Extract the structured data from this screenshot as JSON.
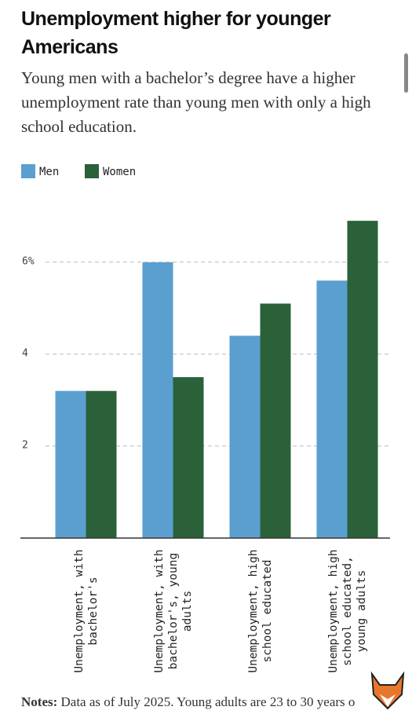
{
  "header": {
    "title": "Unemployment higher for younger Americans",
    "subtitle": "Young men with a bachelor’s degree have a higher unemployment rate than young men with only a high school education."
  },
  "chart_data": {
    "type": "bar",
    "categories": [
      "Unemployment, with bachelor's",
      "Unemployment, with bachelor's, young adults",
      "Unemployment, high school educated",
      "Unemployment, high school educated, young adults"
    ],
    "series": [
      {
        "name": "Men",
        "color": "#5b9fd1",
        "values": [
          3.2,
          6.0,
          4.4,
          5.6
        ]
      },
      {
        "name": "Women",
        "color": "#2a6139",
        "values": [
          3.2,
          3.5,
          5.1,
          6.9
        ]
      }
    ],
    "ylim": [
      0,
      7.5
    ],
    "yticks": [
      2,
      4,
      {
        "value": 6,
        "label": "6%"
      }
    ],
    "grid": true
  },
  "notes": {
    "label": "Notes:",
    "text": "Data as of July 2025. Young adults are 23 to 30 years o"
  }
}
